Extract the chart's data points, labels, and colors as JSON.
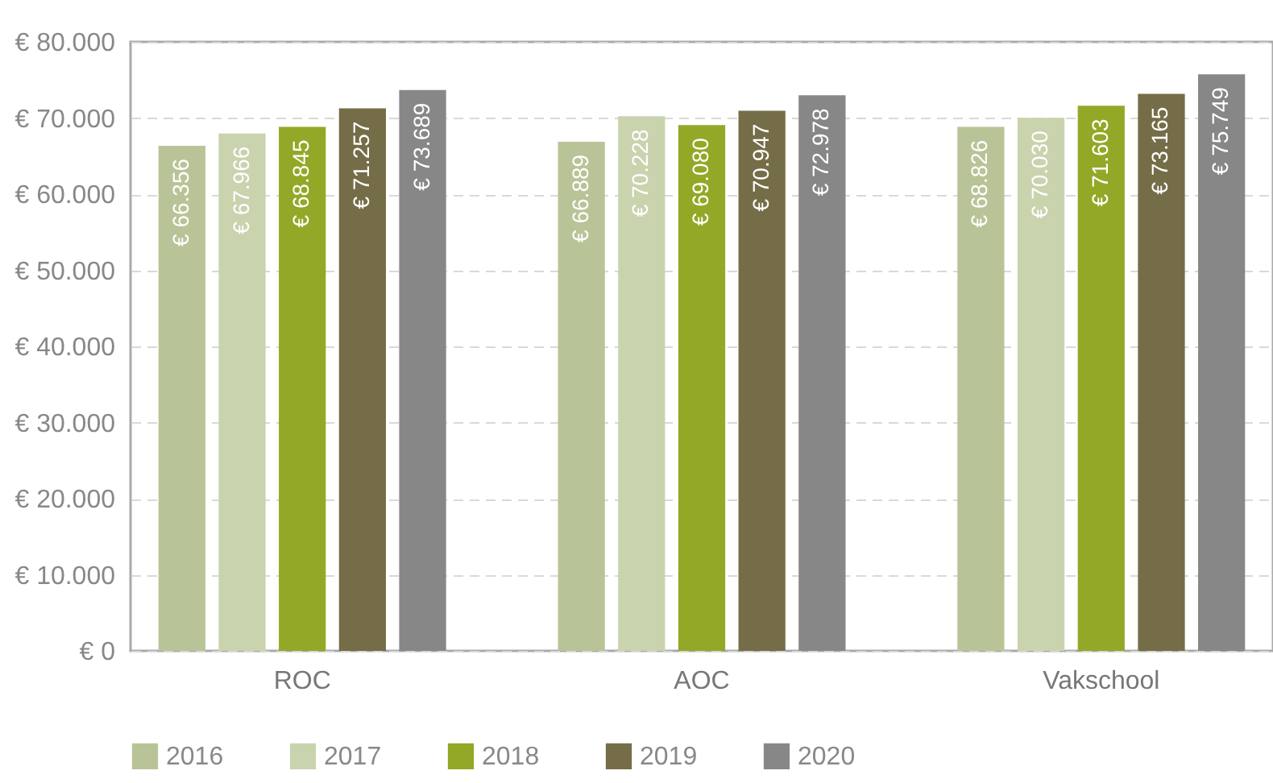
{
  "chart_data": {
    "type": "bar",
    "categories": [
      "ROC",
      "AOC",
      "Vakschool"
    ],
    "series": [
      {
        "name": "2016",
        "color": "#b8c497",
        "values": [
          66356,
          66889,
          68826
        ],
        "value_labels": [
          "€ 66.356",
          "€ 66.889",
          "€ 68.826"
        ]
      },
      {
        "name": "2017",
        "color": "#c9d3ae",
        "values": [
          67966,
          70228,
          70030
        ],
        "value_labels": [
          "€ 67.966",
          "€ 70.228",
          "€ 70.030"
        ]
      },
      {
        "name": "2018",
        "color": "#93a826",
        "values": [
          68845,
          69080,
          71603
        ],
        "value_labels": [
          "€ 68.845",
          "€ 69.080",
          "€ 71.603"
        ]
      },
      {
        "name": "2019",
        "color": "#756d47",
        "values": [
          71257,
          70947,
          73165
        ],
        "value_labels": [
          "€ 71.257",
          "€ 70.947",
          "€ 73.165"
        ]
      },
      {
        "name": "2020",
        "color": "#878787",
        "values": [
          73689,
          72978,
          75749
        ],
        "value_labels": [
          "€ 73.689",
          "€ 72.978",
          "€ 75.749"
        ]
      }
    ],
    "ylim": [
      0,
      80000
    ],
    "yticks": [
      {
        "value": 0,
        "label": "€ 0"
      },
      {
        "value": 10000,
        "label": "€ 10.000"
      },
      {
        "value": 20000,
        "label": "€ 20.000"
      },
      {
        "value": 30000,
        "label": "€ 30.000"
      },
      {
        "value": 40000,
        "label": "€ 40.000"
      },
      {
        "value": 50000,
        "label": "€ 50.000"
      },
      {
        "value": 60000,
        "label": "€ 60.000"
      },
      {
        "value": 70000,
        "label": "€ 70.000"
      },
      {
        "value": 80000,
        "label": "€ 80.000"
      }
    ],
    "grid": "y",
    "legend": "bottom"
  }
}
